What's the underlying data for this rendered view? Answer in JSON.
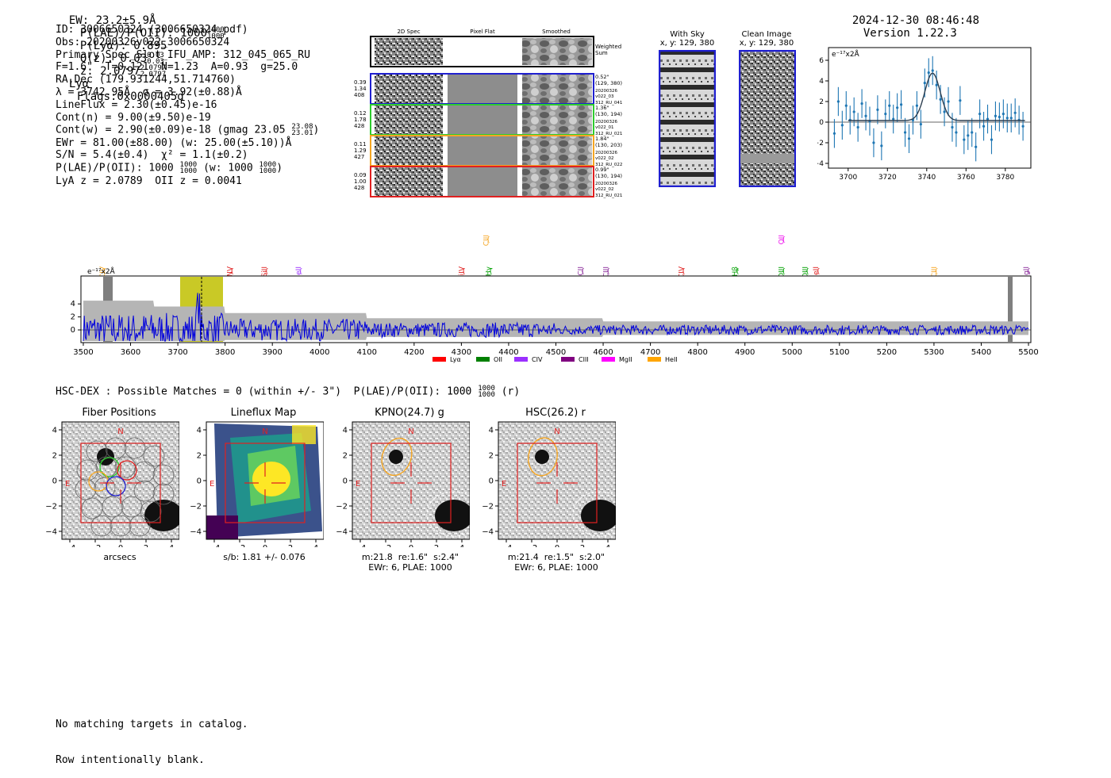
{
  "header": {
    "ew_label": "EW: 23.2±5.9Å",
    "plae_label": "P(LAE)/P(OII): 1000",
    "plae_hi": "1000",
    "plae_lo": "1000",
    "plya": "P(Lyα): 0.895",
    "qz_label": "Q(z): 0.03",
    "qz_hi": "0.03",
    "qz_lo": "0.03",
    "z_label": "z: 2.0797",
    "z_hi": "2.0797",
    "z_lo": "2.0797",
    "z_line": "Lyα",
    "flags": "Flags:0x0000405d",
    "datetime": "2024-12-30 08:46:48",
    "version": "Version 1.22.3"
  },
  "info": {
    "id": "ID: 3006650324 (3006650324.pdf)",
    "obs": "Obs: 20200326v022_3006650324",
    "primary": "Primary Spec_Slot_IFU_AMP: 312_045_065_RU",
    "fit": "F=1.6\"  T=0.121  N=1.23  A=0.93  g=25.0",
    "radec": "RA,Dec (179.931244,51.714760)",
    "lambda": "λ = 3742.95Å  σ = 3.92(±0.88)Å",
    "lineflux": "LineFlux = 2.30(±0.45)e-16",
    "contn": "Cont(n) = 9.00(±9.50)e-19",
    "contw": "Cont(w) = 2.90(±0.09)e-18 (gmag 23.05",
    "gmag_hi": "23.08",
    "gmag_lo": "23.01",
    "contw_end": ")",
    "ewr": "EWr = 81.00(±88.00) (w: 25.00(±5.10))Å",
    "sn": "S/N = 5.4(±0.4)  χ² = 1.1(±0.2)",
    "plae": "P(LAE)/P(OII): 1000",
    "plae_hi": "1000",
    "plae_lo": "1000",
    "plae_w": "(w: 1000",
    "plae_w_hi": "1000",
    "plae_w_lo": "1000",
    "plae_w_end": ")",
    "lya_z": "LyA z = 2.0789  OII z = 0.0041"
  },
  "cutouts": {
    "col_2d": "2D Spec",
    "col_flat": "Pixel Flat",
    "col_smooth": "Smoothed",
    "weighted": "Weighted",
    "sum": "Sum",
    "rows": [
      {
        "w1": "0.39",
        "w2": "1.34",
        "w3": "408",
        "d": "0.52\"",
        "xy": "(129, 380)",
        "date": "20200326",
        "shot": "v022_03",
        "amp": "312_RU_041",
        "color": "#1f1fd0"
      },
      {
        "w1": "0.12",
        "w2": "1.78",
        "w3": "428",
        "d": "1.36\"",
        "xy": "(130, 194)",
        "date": "20200326",
        "shot": "v022_01",
        "amp": "312_RU_021",
        "color": "#2ecc2e"
      },
      {
        "w1": "0.11",
        "w2": "1.29",
        "w3": "427",
        "d": "1.84\"",
        "xy": "(130, 203)",
        "date": "20200326",
        "shot": "v022_02",
        "amp": "312_RU_022",
        "color": "#f5a623"
      },
      {
        "w1": "0.09",
        "w2": "1.00",
        "w3": "428",
        "d": "0.99\"",
        "xy": "(130, 194)",
        "date": "20200326",
        "shot": "v022_02",
        "amp": "312_RU_021",
        "color": "#e02020"
      }
    ]
  },
  "sky": {
    "with_sky": "With Sky",
    "with_sky_xy": "x, y: 129, 380",
    "clean": "Clean Image",
    "clean_xy": "x, y: 129, 380"
  },
  "zoom_plot": {
    "ylabel": "e⁻¹⁷x2Å",
    "yticks": [
      "6",
      "4",
      "2",
      "0",
      "−2",
      "−4"
    ],
    "xticks": [
      "3700",
      "3720",
      "3740",
      "3760",
      "3780"
    ]
  },
  "spectrum": {
    "ylabel": "e⁻¹⁷x2Å",
    "yticks": [
      "4",
      "2",
      "0"
    ],
    "xticks": [
      "3500",
      "3600",
      "3700",
      "3800",
      "3900",
      "4000",
      "4100",
      "4200",
      "4300",
      "4400",
      "4500",
      "4600",
      "4700",
      "4800",
      "4900",
      "5000",
      "5100",
      "5200",
      "5300",
      "5400",
      "5500"
    ],
    "lines": [
      {
        "name": "CIV",
        "wave": 3545,
        "color": "#f5a623",
        "row": "mid"
      },
      {
        "name": "NV",
        "wave": 3815,
        "color": "#e02020",
        "row": "mid"
      },
      {
        "name": "SiII",
        "wave": 3888,
        "color": "#e02020",
        "row": "mid"
      },
      {
        "name": "HeII",
        "wave": 3960,
        "color": "#9b30ff",
        "row": "mid"
      },
      {
        "name": "CIII",
        "wave": 4357,
        "color": "#f5a623",
        "row": "top"
      },
      {
        "name": "SiIV",
        "wave": 4305,
        "color": "#e02020",
        "row": "mid"
      },
      {
        "name": "Hγ",
        "wave": 4362,
        "color": "#00a000",
        "row": "mid"
      },
      {
        "name": "CII",
        "wave": 4557,
        "color": "#8b2c9b",
        "row": "mid"
      },
      {
        "name": "CIII",
        "wave": 4611,
        "color": "#8b2c9b",
        "row": "mid"
      },
      {
        "name": "CIV",
        "wave": 4770,
        "color": "#e02020",
        "row": "mid"
      },
      {
        "name": "Hβ",
        "wave": 4884,
        "color": "#00a000",
        "row": "mid"
      },
      {
        "name": "OII",
        "wave": 4982,
        "color": "#ee10ee",
        "row": "top"
      },
      {
        "name": "OIII",
        "wave": 4982,
        "color": "#00a000",
        "row": "mid"
      },
      {
        "name": "OIII",
        "wave": 5032,
        "color": "#00a000",
        "row": "mid"
      },
      {
        "name": "HeII",
        "wave": 5055,
        "color": "#e02020",
        "row": "mid"
      },
      {
        "name": "CIII",
        "wave": 5305,
        "color": "#f5a623",
        "row": "mid"
      },
      {
        "name": "MgII",
        "wave": 5500,
        "color": "#8b2c9b",
        "row": "mid"
      }
    ],
    "legend": [
      {
        "name": "Lyα",
        "color": "#ff0000"
      },
      {
        "name": "OII",
        "color": "#008000"
      },
      {
        "name": "CIV",
        "color": "#9b30ff"
      },
      {
        "name": "CIII",
        "color": "#800080"
      },
      {
        "name": "MgII",
        "color": "#ff00ff"
      },
      {
        "name": "HeII",
        "color": "#ffa500"
      }
    ]
  },
  "hsc": {
    "title": "HSC-DEX : Possible Matches = 0 (within +/- 3\")  P(LAE)/P(OII): 1000",
    "title_hi": "1000",
    "title_lo": "1000",
    "title_end": "(r)"
  },
  "panels": [
    {
      "title": "Fiber Positions",
      "cap1": "arcsecs",
      "cap2": "",
      "cap3": ""
    },
    {
      "title": "Lineflux Map",
      "cap1": "s/b: 1.81 +/- 0.076",
      "cap2": "",
      "cap3": ""
    },
    {
      "title": "KPNO(24.7) g",
      "cap1": "m:21.8  re:1.6\"  s:2.4\"",
      "cap2": "EWr: 6, PLAE: 1000",
      "cap3": ""
    },
    {
      "title": "HSC(26.2) r",
      "cap1": "m:21.4  re:1.5\"  s:2.0\"",
      "cap2": "EWr: 6, PLAE: 1000",
      "cap3": ""
    }
  ],
  "panel_axis": {
    "yticks": [
      "4",
      "2",
      "0",
      "−2",
      "−4"
    ],
    "xticks": [
      "−4",
      "−2",
      "0",
      "2",
      "4"
    ],
    "north": "N",
    "east": "E"
  },
  "footer": {
    "line1": "No matching targets in catalog.",
    "line2": "Row intentionally blank."
  }
}
